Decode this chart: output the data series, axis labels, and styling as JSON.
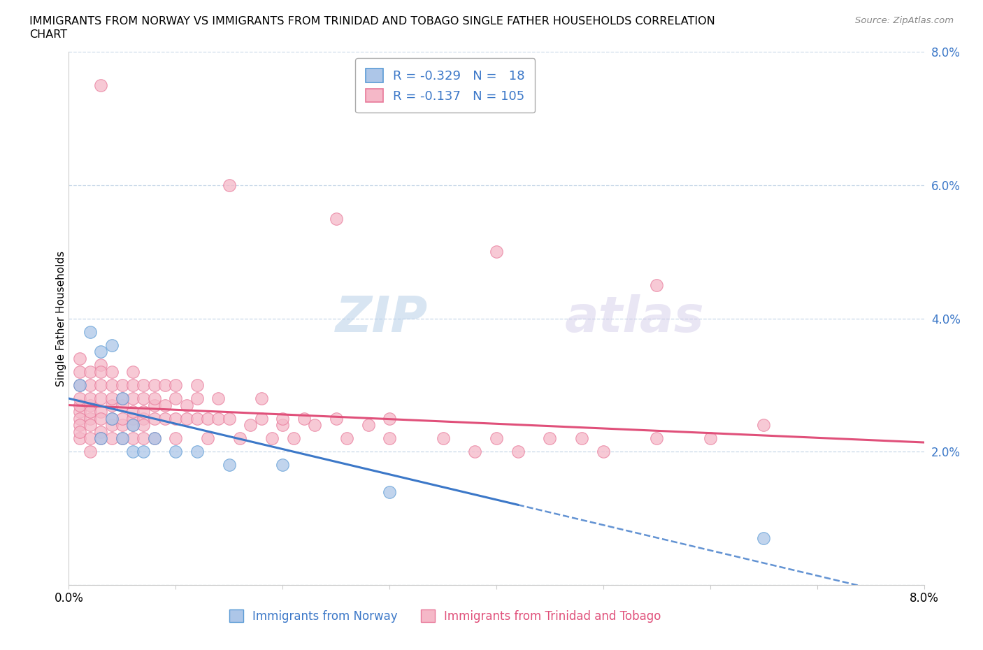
{
  "title_line1": "IMMIGRANTS FROM NORWAY VS IMMIGRANTS FROM TRINIDAD AND TOBAGO SINGLE FATHER HOUSEHOLDS CORRELATION",
  "title_line2": "CHART",
  "source": "Source: ZipAtlas.com",
  "ylabel": "Single Father Households",
  "xlabel_blue": "Immigrants from Norway",
  "xlabel_pink": "Immigrants from Trinidad and Tobago",
  "xmin": 0.0,
  "xmax": 0.08,
  "ymin": 0.0,
  "ymax": 0.08,
  "blue_R": -0.329,
  "blue_N": 18,
  "pink_R": -0.137,
  "pink_N": 105,
  "blue_fill": "#adc6e8",
  "blue_edge": "#5b9bd5",
  "blue_line": "#3c78c8",
  "pink_fill": "#f5b8c8",
  "pink_edge": "#e8799a",
  "pink_line": "#e0507a",
  "watermark_zip": "ZIP",
  "watermark_atlas": "atlas",
  "grid_color": "#c8d8e8",
  "background_color": "#ffffff",
  "tick_color": "#3c78c8",
  "blue_line_start_y": 0.028,
  "blue_line_slope": -0.38,
  "pink_line_start_y": 0.027,
  "pink_line_slope": -0.07,
  "blue_scatter_x": [
    0.001,
    0.002,
    0.003,
    0.004,
    0.005,
    0.003,
    0.004,
    0.005,
    0.006,
    0.006,
    0.007,
    0.008,
    0.01,
    0.012,
    0.015,
    0.02,
    0.03,
    0.065
  ],
  "blue_scatter_y": [
    0.03,
    0.038,
    0.035,
    0.036,
    0.028,
    0.022,
    0.025,
    0.022,
    0.024,
    0.02,
    0.02,
    0.022,
    0.02,
    0.02,
    0.018,
    0.018,
    0.014,
    0.007
  ],
  "pink_scatter_x": [
    0.001,
    0.001,
    0.001,
    0.001,
    0.001,
    0.001,
    0.001,
    0.001,
    0.001,
    0.001,
    0.002,
    0.002,
    0.002,
    0.002,
    0.002,
    0.002,
    0.002,
    0.002,
    0.002,
    0.003,
    0.003,
    0.003,
    0.003,
    0.003,
    0.003,
    0.003,
    0.003,
    0.004,
    0.004,
    0.004,
    0.004,
    0.004,
    0.004,
    0.004,
    0.005,
    0.005,
    0.005,
    0.005,
    0.005,
    0.005,
    0.006,
    0.006,
    0.006,
    0.006,
    0.006,
    0.006,
    0.006,
    0.007,
    0.007,
    0.007,
    0.007,
    0.007,
    0.007,
    0.008,
    0.008,
    0.008,
    0.008,
    0.008,
    0.009,
    0.009,
    0.009,
    0.01,
    0.01,
    0.01,
    0.01,
    0.011,
    0.011,
    0.012,
    0.012,
    0.012,
    0.013,
    0.013,
    0.014,
    0.014,
    0.015,
    0.016,
    0.017,
    0.018,
    0.018,
    0.019,
    0.02,
    0.02,
    0.021,
    0.022,
    0.023,
    0.025,
    0.026,
    0.028,
    0.03,
    0.03,
    0.035,
    0.038,
    0.04,
    0.042,
    0.045,
    0.048,
    0.05,
    0.055,
    0.06,
    0.065,
    0.003,
    0.015,
    0.025,
    0.04,
    0.055
  ],
  "pink_scatter_y": [
    0.026,
    0.027,
    0.028,
    0.025,
    0.022,
    0.024,
    0.03,
    0.032,
    0.034,
    0.023,
    0.025,
    0.027,
    0.03,
    0.028,
    0.032,
    0.022,
    0.024,
    0.026,
    0.02,
    0.023,
    0.026,
    0.028,
    0.03,
    0.033,
    0.032,
    0.025,
    0.022,
    0.024,
    0.027,
    0.03,
    0.032,
    0.028,
    0.022,
    0.025,
    0.024,
    0.027,
    0.03,
    0.025,
    0.022,
    0.028,
    0.025,
    0.028,
    0.032,
    0.026,
    0.03,
    0.022,
    0.024,
    0.025,
    0.028,
    0.03,
    0.026,
    0.022,
    0.024,
    0.025,
    0.027,
    0.03,
    0.022,
    0.028,
    0.025,
    0.027,
    0.03,
    0.025,
    0.028,
    0.03,
    0.022,
    0.025,
    0.027,
    0.025,
    0.028,
    0.03,
    0.025,
    0.022,
    0.025,
    0.028,
    0.025,
    0.022,
    0.024,
    0.025,
    0.028,
    0.022,
    0.024,
    0.025,
    0.022,
    0.025,
    0.024,
    0.025,
    0.022,
    0.024,
    0.022,
    0.025,
    0.022,
    0.02,
    0.022,
    0.02,
    0.022,
    0.022,
    0.02,
    0.022,
    0.022,
    0.024,
    0.075,
    0.06,
    0.055,
    0.05,
    0.045
  ]
}
